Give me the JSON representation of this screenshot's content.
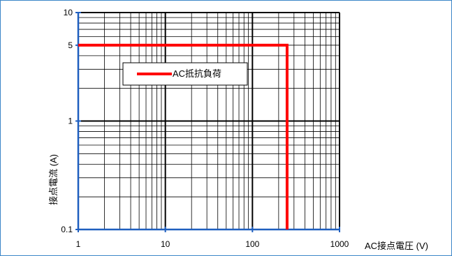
{
  "chart_data": {
    "type": "line",
    "xscale": "log",
    "yscale": "log",
    "xlim": [
      1,
      1000
    ],
    "ylim": [
      0.1,
      10
    ],
    "x_ticks": [
      1,
      10,
      100,
      1000
    ],
    "x_tick_labels": [
      "1",
      "10",
      "100",
      "1000"
    ],
    "y_ticks": [
      0.1,
      1,
      5,
      10
    ],
    "y_tick_labels": [
      "0.1",
      "1",
      "5",
      "10"
    ],
    "xlabel": "AC接点電圧 (V)",
    "ylabel": "接点電流 (A)",
    "grid": true,
    "legend_position": "upper-left inside plot",
    "series": [
      {
        "name": "AC抵抗負荷",
        "color": "#ff0000",
        "x": [
          1,
          250,
          250
        ],
        "y": [
          5,
          5,
          0.1
        ]
      }
    ]
  },
  "colors": {
    "frame": "#3b86c8",
    "axis_left_bottom": "#1f5fbf",
    "axis_top_right": "#000000",
    "grid_major": "#000000",
    "grid_minor": "#000000"
  }
}
